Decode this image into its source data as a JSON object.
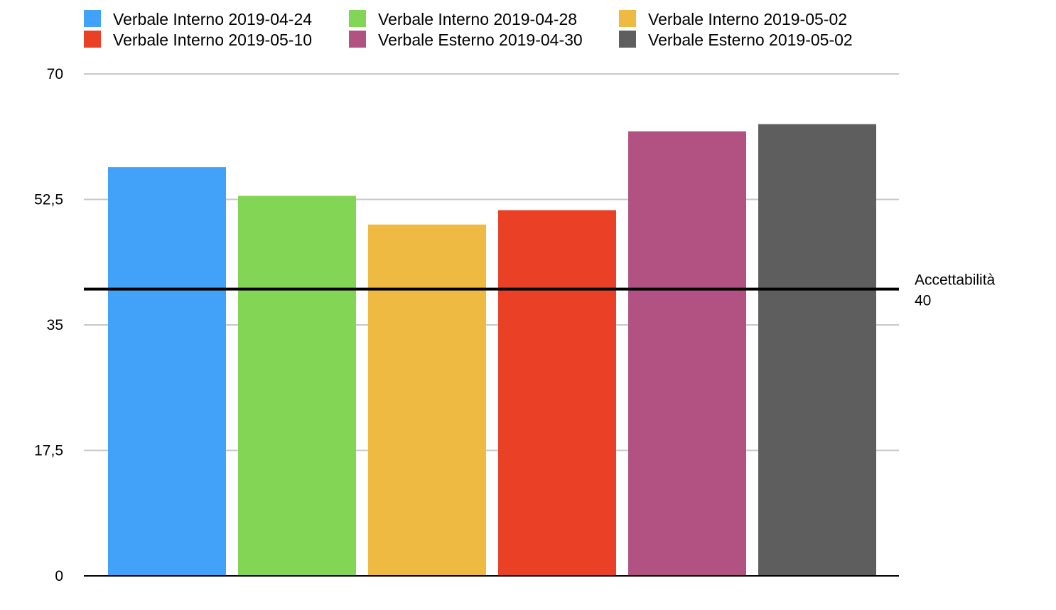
{
  "chart_data": {
    "type": "bar",
    "title": "",
    "xlabel": "",
    "ylabel": "",
    "ylim": [
      0,
      70
    ],
    "yticks": [
      {
        "value": 0,
        "label": "0"
      },
      {
        "value": 17.5,
        "label": "17,5"
      },
      {
        "value": 35,
        "label": "35"
      },
      {
        "value": 52.5,
        "label": "52,5"
      },
      {
        "value": 70,
        "label": "70"
      }
    ],
    "grid": true,
    "legend_position": "top",
    "series": [
      {
        "name": "Verbale Interno 2019-04-24",
        "value": 57,
        "color": "#42a1f8"
      },
      {
        "name": "Verbale Interno 2019-04-28",
        "value": 53,
        "color": "#83d555"
      },
      {
        "name": "Verbale Interno 2019-05-02",
        "value": 49,
        "color": "#efba41"
      },
      {
        "name": "Verbale Interno 2019-05-10",
        "value": 51,
        "color": "#e94026"
      },
      {
        "name": "Verbale Esterno 2019-04-30",
        "value": 62,
        "color": "#b25283"
      },
      {
        "name": "Verbale Esterno 2019-05-02",
        "value": 63,
        "color": "#5e5e5e"
      }
    ],
    "reference_line": {
      "label": "Accettabilità",
      "value_label": "40",
      "value": 40,
      "color": "#000000"
    }
  }
}
